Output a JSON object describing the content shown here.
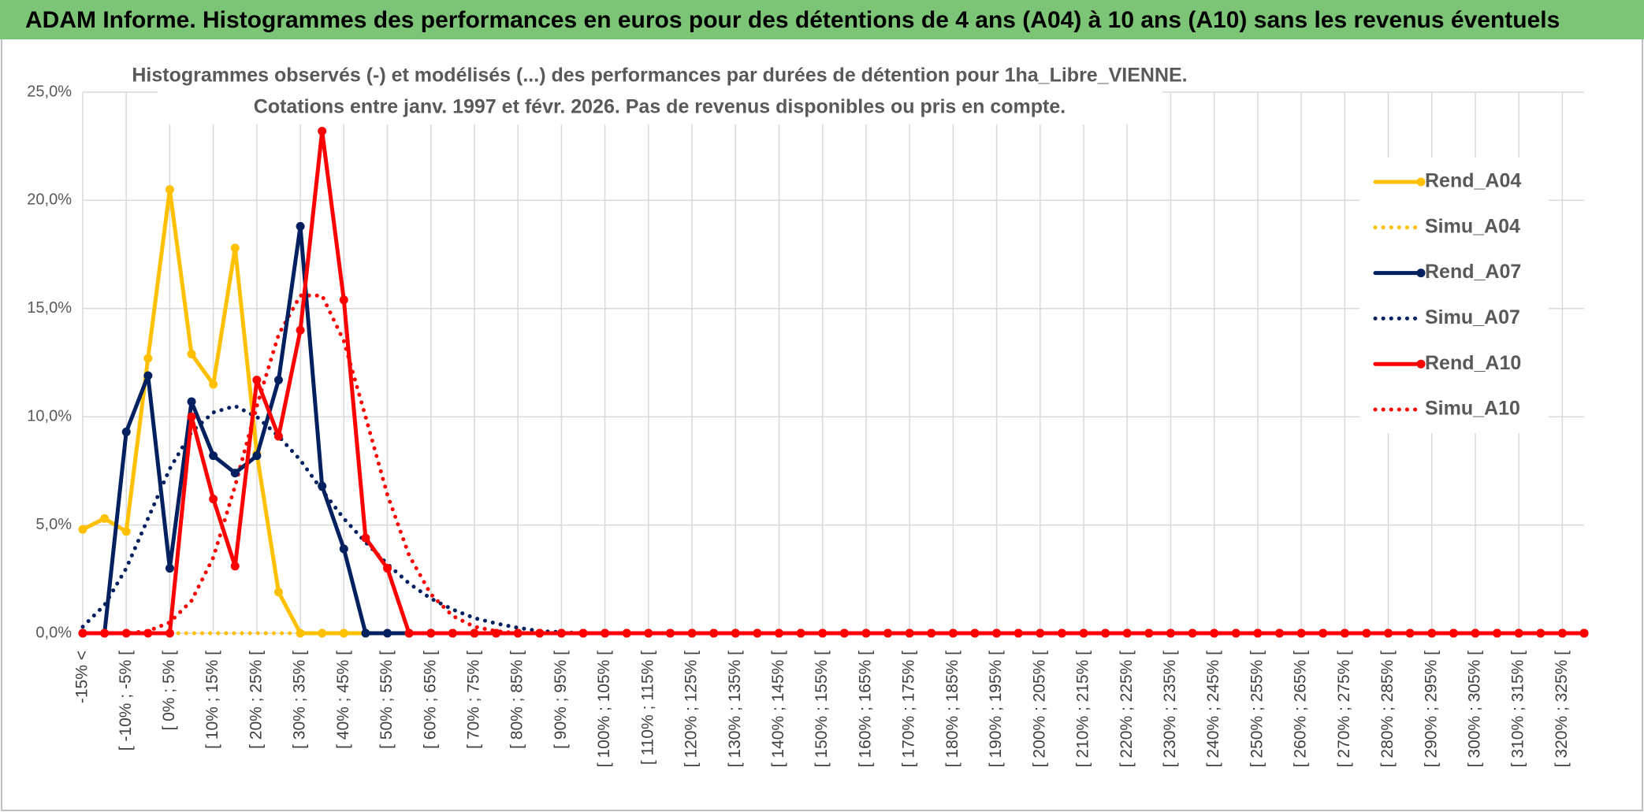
{
  "header": {
    "title": "ADAM Informe. Histogrammes des performances en euros pour des détentions de 4 ans (A04) à 10 ans (A10) sans les revenus éventuels"
  },
  "chart_data": {
    "type": "line",
    "title": "Histogrammes observés (-) et modélisés (...) des performances par durées de détention pour 1ha_Libre_VIENNE.",
    "subtitle": "Cotations entre janv. 1997 et févr. 2026. Pas de revenus disponibles ou pris en compte.",
    "categories": [
      "-15% <",
      null,
      "[ -10% ; -5% [",
      null,
      "[ 0% ; 5% [",
      null,
      "[ 10% ; 15% [",
      null,
      "[ 20% ; 25% [",
      null,
      "[ 30% ; 35% [",
      null,
      "[ 40% ; 45% [",
      null,
      "[ 50% ; 55% [",
      null,
      "[ 60% ; 65% [",
      null,
      "[ 70% ; 75% [",
      null,
      "[ 80% ; 85% [",
      null,
      "[ 90% ; 95% [",
      null,
      "[ 100% ; 105% [",
      null,
      "[ 110% ; 115% [",
      null,
      "[ 120% ; 125% [",
      null,
      "[ 130% ; 135% [",
      null,
      "[ 140% ; 145% [",
      null,
      "[ 150% ; 155% [",
      null,
      "[ 160% ; 165% [",
      null,
      "[ 170% ; 175% [",
      null,
      "[ 180% ; 185% [",
      null,
      "[ 190% ; 195% [",
      null,
      "[ 200% ; 205% [",
      null,
      "[ 210% ; 215% [",
      null,
      "[ 220% ; 225% [",
      null,
      "[ 230% ; 235% [",
      null,
      "[ 240% ; 245% [",
      null,
      "[ 250% ; 255% [",
      null,
      "[ 260% ; 265% [",
      null,
      "[ 270% ; 275% [",
      null,
      "[ 280% ; 285% [",
      null,
      "[ 290% ; 295% [",
      null,
      "[ 300% ; 305% [",
      null,
      "[ 310% ; 315% [",
      null,
      "[ 320% ; 325% [",
      null
    ],
    "series": [
      {
        "name": "Rend_A04",
        "color": "#ffc000",
        "style": "solid",
        "values": [
          4.8,
          5.3,
          4.7,
          12.7,
          20.5,
          12.9,
          11.5,
          17.8,
          8.3,
          1.9,
          0,
          0,
          0,
          0,
          0,
          0,
          0,
          0,
          0,
          0,
          0,
          0,
          0,
          0,
          0,
          0,
          0,
          0,
          0,
          0,
          0,
          0,
          0,
          0,
          0,
          0,
          0,
          0,
          0,
          0,
          0,
          0,
          0,
          0,
          0,
          0,
          0,
          0,
          0,
          0,
          0,
          0,
          0,
          0,
          0,
          0,
          0,
          0,
          0,
          0,
          0,
          0,
          0,
          0,
          0,
          0,
          0,
          0,
          0,
          0
        ]
      },
      {
        "name": "Simu_A04",
        "color": "#ffc000",
        "style": "dotted",
        "values": [
          0,
          0,
          0,
          0,
          0,
          0,
          0,
          0,
          0,
          0,
          0,
          0,
          0,
          0,
          0,
          0,
          0,
          0,
          0,
          0,
          0,
          0,
          0,
          0,
          0,
          0,
          0,
          0,
          0,
          0,
          0,
          0,
          0,
          0,
          0,
          0,
          0,
          0,
          0,
          0,
          0,
          0,
          0,
          0,
          0,
          0,
          0,
          0,
          0,
          0,
          0,
          0,
          0,
          0,
          0,
          0,
          0,
          0,
          0,
          0,
          0,
          0,
          0,
          0,
          0,
          0,
          0,
          0,
          0,
          0
        ]
      },
      {
        "name": "Rend_A07",
        "color": "#002060",
        "style": "solid",
        "values": [
          0,
          0,
          9.3,
          11.9,
          3,
          10.7,
          8.2,
          7.4,
          8.2,
          11.7,
          18.8,
          6.8,
          3.9,
          0,
          0,
          0,
          0,
          0,
          0,
          0,
          0,
          0,
          0,
          0,
          0,
          0,
          0,
          0,
          0,
          0,
          0,
          0,
          0,
          0,
          0,
          0,
          0,
          0,
          0,
          0,
          0,
          0,
          0,
          0,
          0,
          0,
          0,
          0,
          0,
          0,
          0,
          0,
          0,
          0,
          0,
          0,
          0,
          0,
          0,
          0,
          0,
          0,
          0,
          0,
          0,
          0,
          0,
          0,
          0,
          0
        ]
      },
      {
        "name": "Simu_A07",
        "color": "#002060",
        "style": "dotted",
        "values": [
          0.3,
          1.3,
          3,
          5.3,
          7.6,
          9.3,
          10.2,
          10.5,
          10,
          9.1,
          8,
          6.6,
          5.3,
          4.2,
          3.2,
          2.3,
          1.6,
          1.1,
          0.7,
          0.45,
          0.25,
          0.1,
          0.05,
          0,
          0,
          0,
          0,
          0,
          0,
          0,
          0,
          0,
          0,
          0,
          0,
          0,
          0,
          0,
          0,
          0,
          0,
          0,
          0,
          0,
          0,
          0,
          0,
          0,
          0,
          0,
          0,
          0,
          0,
          0,
          0,
          0,
          0,
          0,
          0,
          0,
          0,
          0,
          0,
          0,
          0,
          0,
          0,
          0,
          0,
          0
        ]
      },
      {
        "name": "Rend_A10",
        "color": "#ff0000",
        "style": "solid",
        "values": [
          0,
          0,
          0,
          0,
          0,
          10,
          6.2,
          3.1,
          11.7,
          9.1,
          14,
          23.2,
          15.4,
          4.4,
          3,
          0,
          0,
          0,
          0,
          0,
          0,
          0,
          0,
          0,
          0,
          0,
          0,
          0,
          0,
          0,
          0,
          0,
          0,
          0,
          0,
          0,
          0,
          0,
          0,
          0,
          0,
          0,
          0,
          0,
          0,
          0,
          0,
          0,
          0,
          0,
          0,
          0,
          0,
          0,
          0,
          0,
          0,
          0,
          0,
          0,
          0,
          0,
          0,
          0,
          0,
          0,
          0,
          0,
          0,
          0
        ]
      },
      {
        "name": "Simu_A10",
        "color": "#ff0000",
        "style": "dotted",
        "values": [
          0,
          0,
          0,
          0.1,
          0.5,
          1.5,
          3.5,
          6.8,
          10.5,
          13.8,
          15.6,
          15.6,
          13.5,
          10,
          6.4,
          3.6,
          1.8,
          0.8,
          0.3,
          0.1,
          0,
          0,
          0,
          0,
          0,
          0,
          0,
          0,
          0,
          0,
          0,
          0,
          0,
          0,
          0,
          0,
          0,
          0,
          0,
          0,
          0,
          0,
          0,
          0,
          0,
          0,
          0,
          0,
          0,
          0,
          0,
          0,
          0,
          0,
          0,
          0,
          0,
          0,
          0,
          0,
          0,
          0,
          0,
          0,
          0,
          0,
          0,
          0,
          0,
          0
        ]
      }
    ],
    "ylim": [
      0,
      25
    ],
    "yticks": [
      {
        "value": 0,
        "label": "0,0%"
      },
      {
        "value": 5,
        "label": "5,0%"
      },
      {
        "value": 10,
        "label": "10,0%"
      },
      {
        "value": 15,
        "label": "15,0%"
      },
      {
        "value": 20,
        "label": "20,0%"
      },
      {
        "value": 25,
        "label": "25,0%"
      }
    ],
    "grid": true,
    "legend": "right"
  }
}
